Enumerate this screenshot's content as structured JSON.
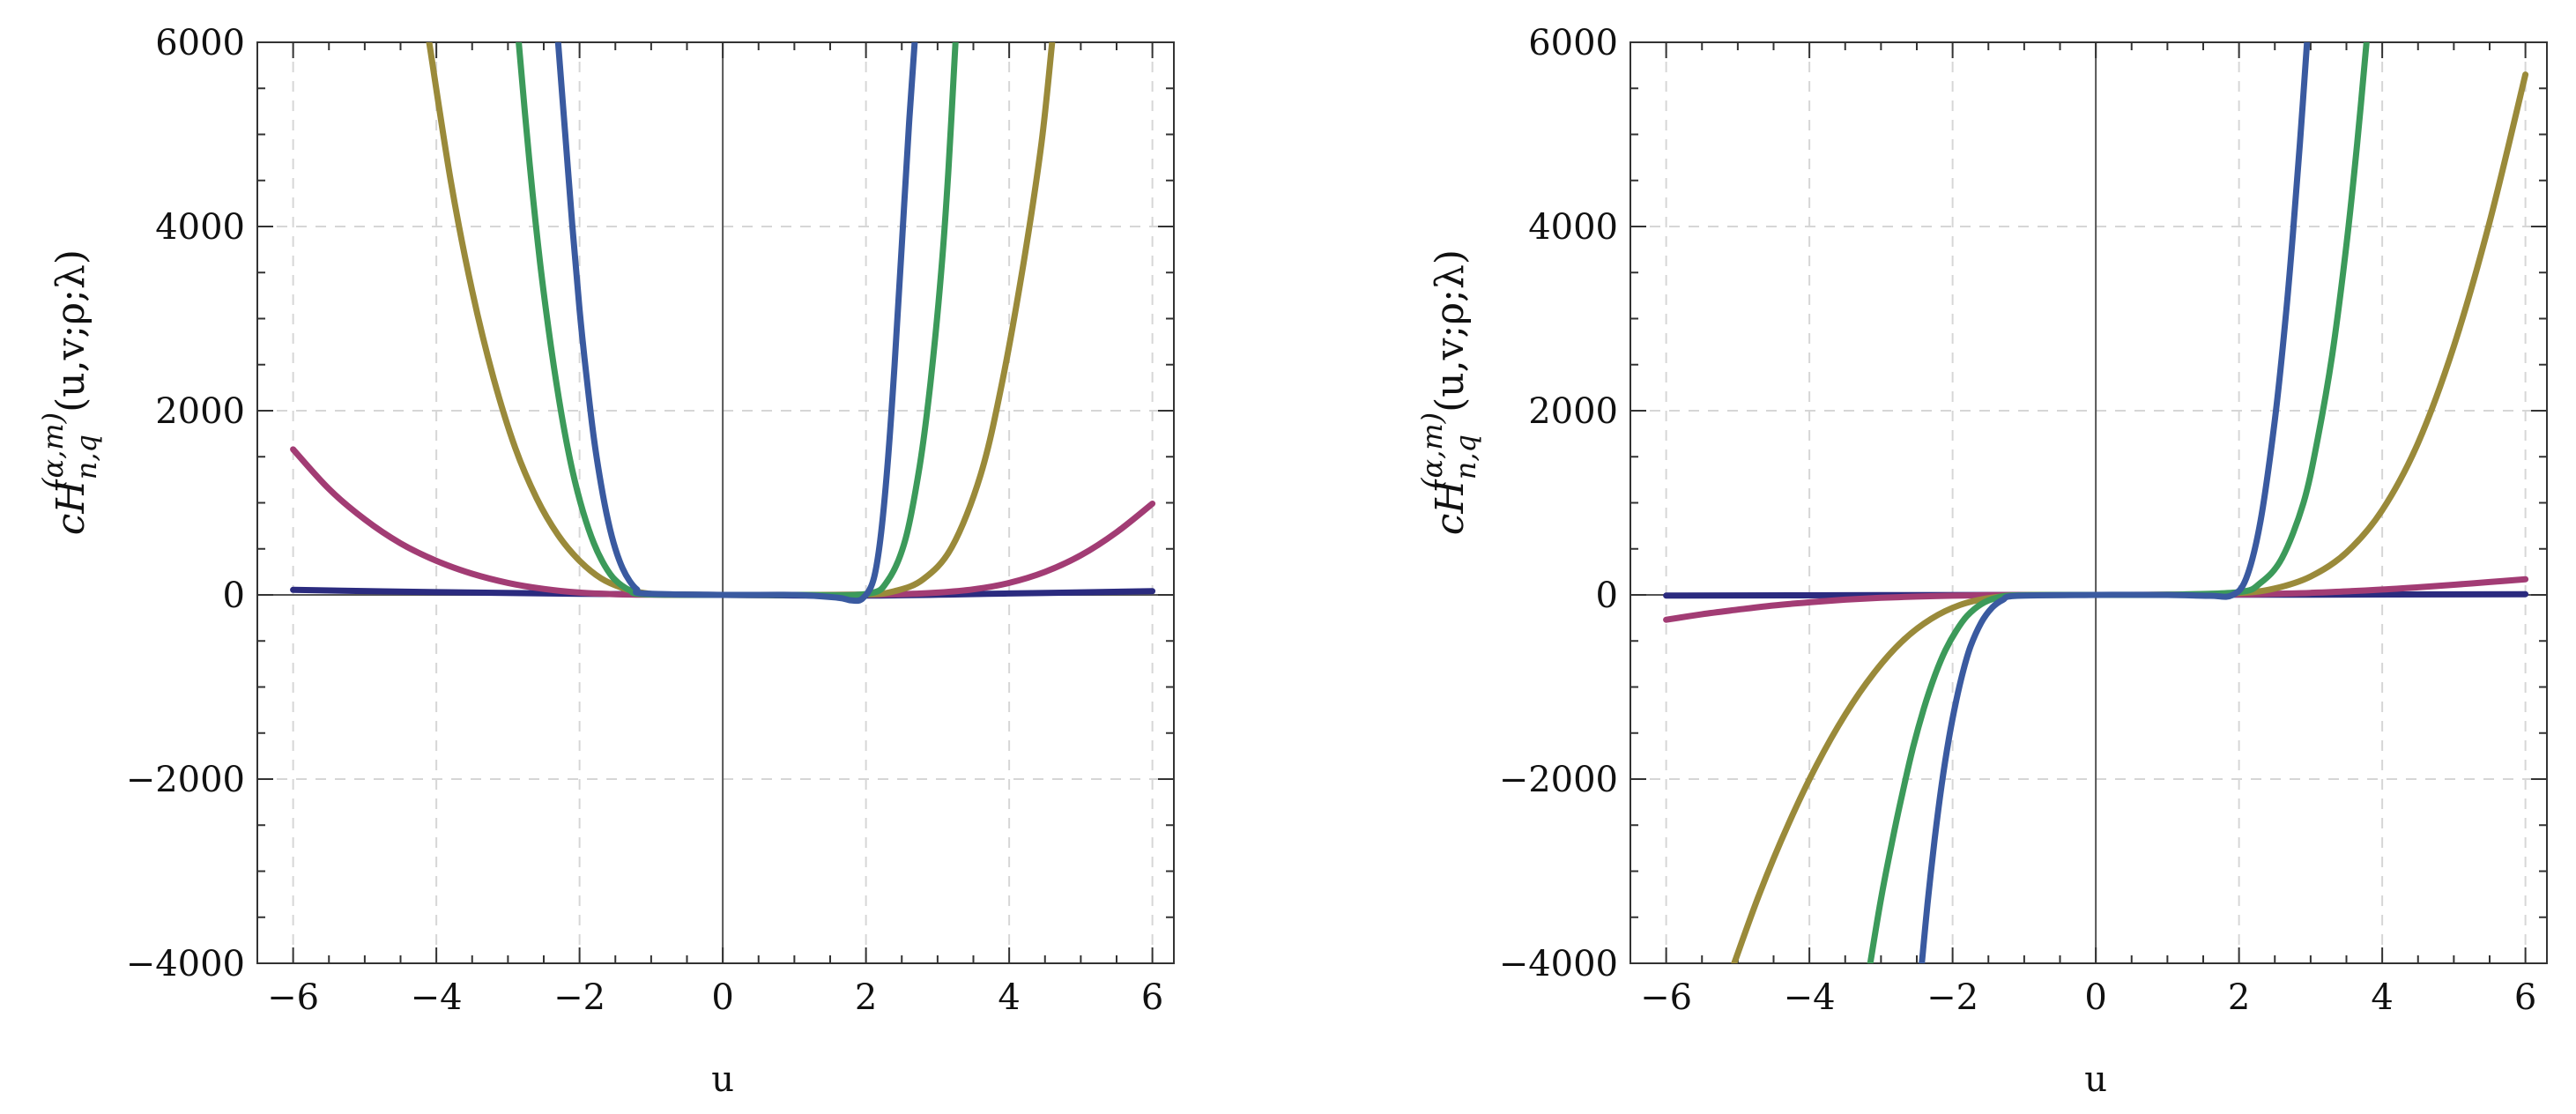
{
  "chart_data": [
    {
      "type": "line",
      "title": "",
      "xlabel": "u",
      "ylabel": {
        "base": "c",
        "symbol": "H",
        "subscript": "n,q",
        "superscript": "(α,m)",
        "args": "(u,v;ρ;λ)"
      },
      "xlim": [
        -6.5,
        6.3
      ],
      "ylim": [
        -4000,
        6000
      ],
      "xticks": [
        -6,
        -4,
        -2,
        0,
        2,
        4,
        6
      ],
      "yticks": [
        -4000,
        -2000,
        0,
        2000,
        4000,
        6000
      ],
      "xtick_labels": [
        "−6",
        "−4",
        "−2",
        "0",
        "2",
        "4",
        "6"
      ],
      "ytick_labels": [
        "−4000",
        "−2000",
        "0",
        "2000",
        "4000",
        "6000"
      ],
      "grid": true,
      "series": [
        {
          "name": "navy",
          "color": "#2b2b7f",
          "x": [
            -6,
            -4,
            -2,
            0,
            2,
            4,
            6
          ],
          "y": [
            55,
            30,
            12,
            0,
            -8,
            15,
            40
          ]
        },
        {
          "name": "magenta",
          "color": "#a23c74",
          "x": [
            -6,
            -5.5,
            -5,
            -4.5,
            -4,
            -3.5,
            -3,
            -2.5,
            -2,
            -1.5,
            -1,
            0,
            1,
            2,
            2.5,
            3,
            3.5,
            4,
            4.5,
            5,
            5.5,
            6
          ],
          "y": [
            1580,
            1150,
            820,
            560,
            370,
            230,
            130,
            65,
            25,
            8,
            2,
            0,
            0,
            2,
            8,
            25,
            60,
            130,
            250,
            430,
            680,
            990
          ]
        },
        {
          "name": "olive",
          "color": "#9a8a3a",
          "x": [
            -4.1,
            -3.8,
            -3.5,
            -3.2,
            -2.9,
            -2.6,
            -2.3,
            -2,
            -1.7,
            -1.4,
            -1.1,
            -0.8,
            0,
            1,
            2,
            2.4,
            2.8,
            3.2,
            3.6,
            3.9,
            4.2,
            4.45,
            4.6
          ],
          "y": [
            6000,
            4500,
            3300,
            2350,
            1600,
            1050,
            650,
            370,
            180,
            75,
            20,
            3,
            0,
            0,
            5,
            40,
            170,
            520,
            1300,
            2300,
            3600,
            4900,
            6000
          ]
        },
        {
          "name": "green",
          "color": "#3c9a5a",
          "x": [
            -2.85,
            -2.7,
            -2.55,
            -2.4,
            -2.25,
            -2.1,
            -1.95,
            -1.8,
            -1.65,
            -1.5,
            -1.3,
            -1.1,
            0,
            1,
            2,
            2.3,
            2.55,
            2.75,
            2.9,
            3.05,
            3.15,
            3.25
          ],
          "y": [
            6000,
            4700,
            3600,
            2700,
            1950,
            1350,
            900,
            560,
            320,
            160,
            50,
            8,
            0,
            0,
            10,
            150,
            600,
            1400,
            2300,
            3500,
            4600,
            6000
          ]
        },
        {
          "name": "blue",
          "color": "#3a5aa0",
          "x": [
            -2.3,
            -2.2,
            -2.1,
            -2,
            -1.9,
            -1.8,
            -1.7,
            -1.6,
            -1.5,
            -1.4,
            -1.3,
            -1.2,
            -1.1,
            0,
            1,
            1.6,
            1.8,
            1.95,
            2.1,
            2.2,
            2.3,
            2.4,
            2.5,
            2.6,
            2.68
          ],
          "y": [
            6000,
            5000,
            4000,
            3100,
            2350,
            1700,
            1200,
            800,
            500,
            290,
            150,
            60,
            15,
            0,
            0,
            -30,
            -60,
            -40,
            150,
            600,
            1400,
            2500,
            3800,
            5100,
            6000
          ]
        }
      ]
    },
    {
      "type": "line",
      "title": "",
      "xlabel": "u",
      "ylabel": {
        "base": "c",
        "symbol": "H",
        "subscript": "n,q",
        "superscript": "(α,m)",
        "args": "(u,v;ρ;λ)"
      },
      "xlim": [
        -6.5,
        6.3
      ],
      "ylim": [
        -4000,
        6000
      ],
      "xticks": [
        -6,
        -4,
        -2,
        0,
        2,
        4,
        6
      ],
      "yticks": [
        -4000,
        -2000,
        0,
        2000,
        4000,
        6000
      ],
      "xtick_labels": [
        "−6",
        "−4",
        "−2",
        "0",
        "2",
        "4",
        "6"
      ],
      "ytick_labels": [
        "−4000",
        "−2000",
        "0",
        "2000",
        "4000",
        "6000"
      ],
      "grid": true,
      "series": [
        {
          "name": "navy",
          "color": "#2b2b7f",
          "x": [
            -6,
            -3,
            0,
            3,
            6
          ],
          "y": [
            -8,
            -3,
            0,
            3,
            8
          ]
        },
        {
          "name": "magenta",
          "color": "#a23c74",
          "x": [
            -6,
            -5.5,
            -5,
            -4.5,
            -4,
            -3.5,
            -3,
            -2.5,
            -2,
            -1.5,
            -1,
            0,
            1,
            2,
            2.5,
            3,
            3.5,
            4,
            4.5,
            5,
            5.5,
            6
          ],
          "y": [
            -270,
            -210,
            -160,
            -115,
            -80,
            -52,
            -32,
            -18,
            -9,
            -3,
            -1,
            0,
            1,
            5,
            12,
            22,
            38,
            58,
            82,
            110,
            140,
            170
          ]
        },
        {
          "name": "olive",
          "color": "#9a8a3a",
          "x": [
            -5.05,
            -4.7,
            -4.3,
            -3.9,
            -3.5,
            -3.1,
            -2.7,
            -2.3,
            -1.9,
            -1.5,
            -1.1,
            -0.7,
            0,
            1,
            2,
            2.5,
            3,
            3.5,
            4,
            4.5,
            5,
            5.5,
            6
          ],
          "y": [
            -4000,
            -3250,
            -2500,
            -1850,
            -1300,
            -850,
            -500,
            -260,
            -110,
            -35,
            -6,
            0,
            0,
            2,
            20,
            70,
            200,
            460,
            920,
            1650,
            2700,
            4050,
            5650
          ]
        },
        {
          "name": "green",
          "color": "#3c9a5a",
          "x": [
            -3.15,
            -3,
            -2.85,
            -2.7,
            -2.55,
            -2.4,
            -2.25,
            -2.1,
            -1.95,
            -1.8,
            -1.6,
            -1.4,
            -1.1,
            0,
            1,
            2,
            2.3,
            2.6,
            2.9,
            3.1,
            3.3,
            3.5,
            3.65,
            3.78
          ],
          "y": [
            -4000,
            -3300,
            -2700,
            -2150,
            -1650,
            -1230,
            -880,
            -600,
            -390,
            -230,
            -100,
            -35,
            -5,
            0,
            2,
            30,
            130,
            400,
            1000,
            1700,
            2600,
            3800,
            4900,
            6000
          ]
        },
        {
          "name": "blue",
          "color": "#3a5aa0",
          "x": [
            -2.43,
            -2.35,
            -2.25,
            -2.15,
            -2.05,
            -1.95,
            -1.85,
            -1.75,
            -1.6,
            -1.45,
            -1.3,
            -1.1,
            0,
            1,
            1.6,
            1.9,
            2.1,
            2.3,
            2.5,
            2.65,
            2.75,
            2.85,
            2.95
          ],
          "y": [
            -4000,
            -3350,
            -2650,
            -2050,
            -1550,
            -1150,
            -820,
            -560,
            -300,
            -140,
            -55,
            -10,
            0,
            0,
            -10,
            -5,
            180,
            800,
            1900,
            3000,
            3900,
            4900,
            6000
          ]
        }
      ]
    }
  ]
}
